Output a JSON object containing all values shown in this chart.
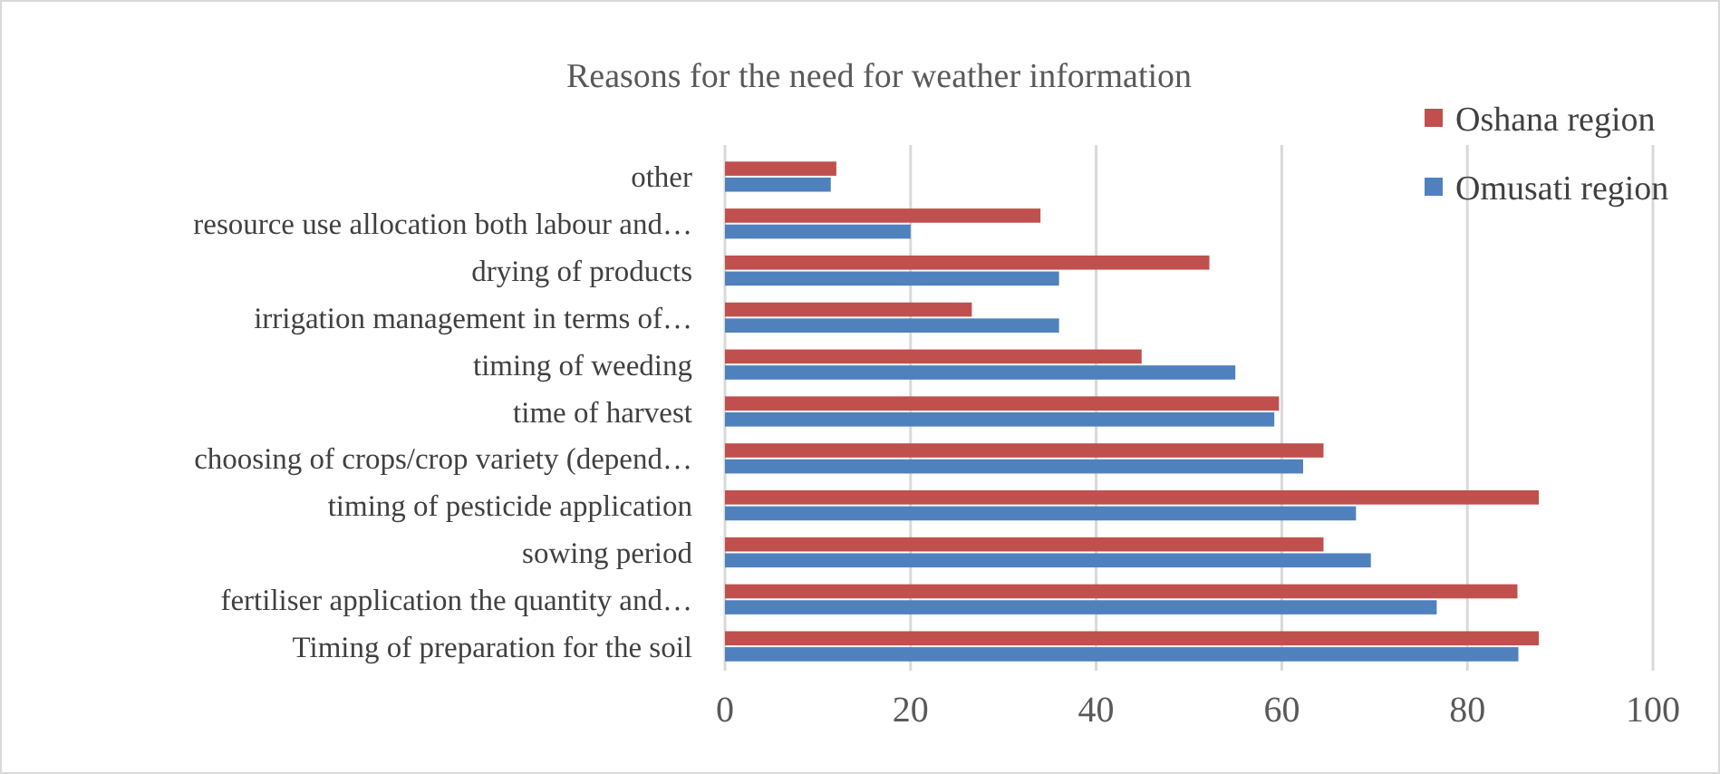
{
  "chart_data": {
    "type": "bar",
    "orientation": "horizontal",
    "title": "Reasons for the need for weather information",
    "categories": [
      "other",
      "resource use allocation both labour and…",
      "drying of products",
      "irrigation management in terms of…",
      "timing of weeding",
      "time of harvest",
      "choosing of crops/crop variety (depend…",
      "timing of pesticide application",
      "sowing period",
      "fertiliser application the quantity and…",
      "Timing of preparation for the soil"
    ],
    "series": [
      {
        "name": "Oshana region",
        "color": "#c0504d",
        "values": [
          12.0,
          34.0,
          52.2,
          26.6,
          44.9,
          59.7,
          64.5,
          87.7,
          64.5,
          85.4,
          87.7
        ]
      },
      {
        "name": "Omusati region",
        "color": "#4f81bd",
        "values": [
          11.4,
          20.0,
          36.0,
          36.0,
          55.0,
          59.2,
          62.3,
          68.0,
          69.6,
          76.7,
          85.5
        ]
      }
    ],
    "xlim": [
      0,
      100
    ],
    "xticks": [
      0,
      20,
      40,
      60,
      80,
      100
    ],
    "grid": "x",
    "legend": "top right"
  }
}
